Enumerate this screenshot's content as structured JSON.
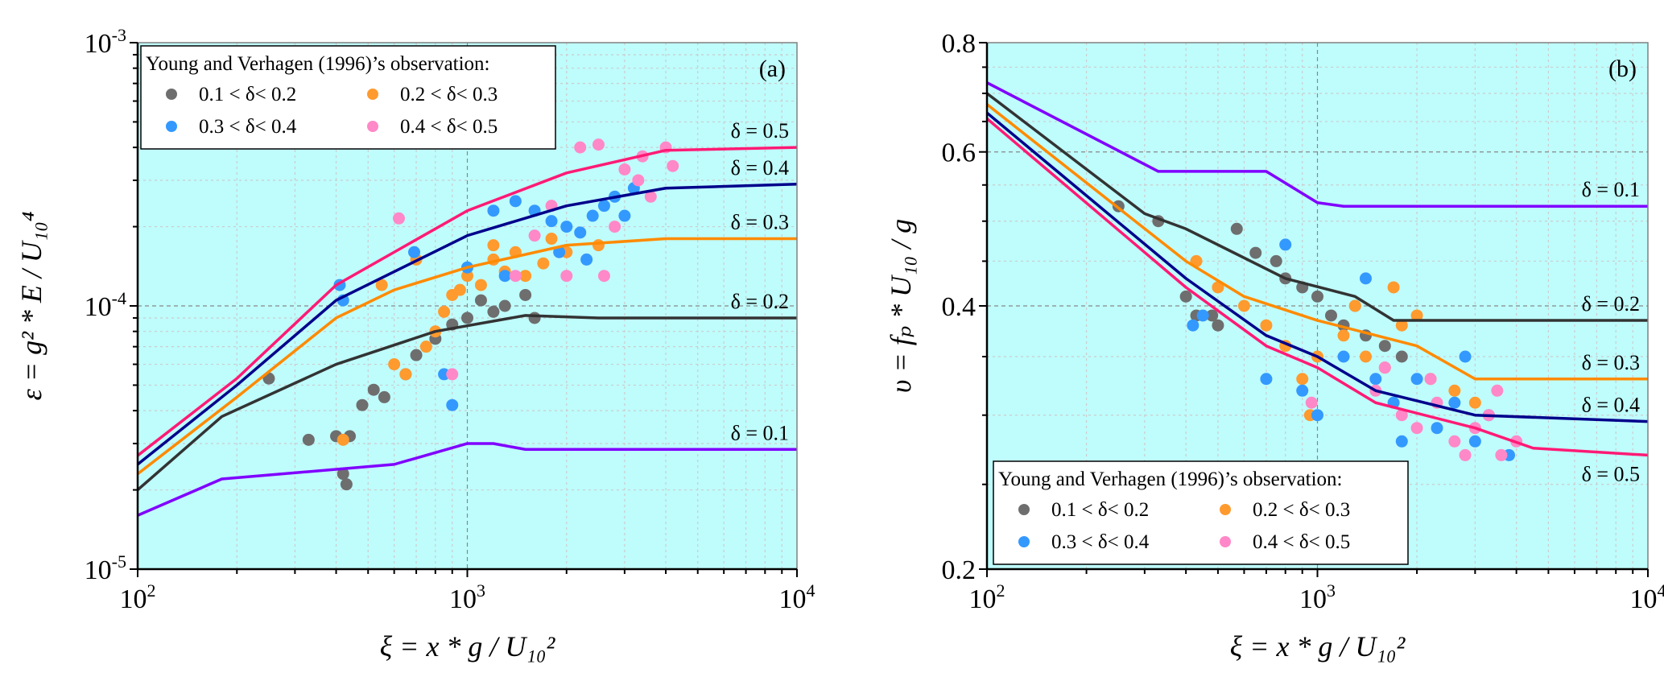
{
  "colors": {
    "background": "#bffcfc",
    "frame": "#808080",
    "lines": {
      "0.1": "#8000ff",
      "0.2": "#333333",
      "0.3": "#ff8a00",
      "0.4": "#00008b",
      "0.5": "#ff1a75"
    },
    "scatter": [
      "#6e6e6e",
      "#ff9a2e",
      "#3399ff",
      "#ff88c8"
    ]
  },
  "chart_data": [
    {
      "type": "line+scatter",
      "panel_label": "(a)",
      "xlabel": "ξ = x * g / U₁₀²",
      "ylabel": "ε = g² * E / U₁₀⁴",
      "xscale": "log",
      "yscale": "log",
      "xlim": [
        100,
        10000
      ],
      "ylim": [
        1e-05,
        0.001
      ],
      "grid": true,
      "xticks": [
        {
          "v": 100,
          "base": "10",
          "exp": "2"
        },
        {
          "v": 1000,
          "base": "10",
          "exp": "3"
        },
        {
          "v": 10000,
          "base": "10",
          "exp": "4"
        }
      ],
      "yticks": [
        {
          "v": 0.001,
          "base": "10",
          "exp": "-3"
        },
        {
          "v": 0.0001,
          "base": "10",
          "exp": "-4"
        },
        {
          "v": 1e-05,
          "base": "10",
          "exp": "-5"
        }
      ],
      "legend": {
        "placement": "top-left",
        "title": "Young and Verhagen (1996)’s observation:",
        "entries": [
          "0.1 < δ< 0.2",
          "0.2 < δ< 0.3",
          "0.3 < δ< 0.4",
          "0.4 < δ< 0.5"
        ]
      },
      "lines": [
        {
          "label": "δ = 0.1",
          "key": "0.1",
          "points": [
            [
              100,
              1.6e-05
            ],
            [
              180,
              2.2e-05
            ],
            [
              600,
              2.5e-05
            ],
            [
              1000,
              3e-05
            ],
            [
              1200,
              3e-05
            ],
            [
              1500,
              2.85e-05
            ],
            [
              10000,
              2.85e-05
            ]
          ]
        },
        {
          "label": "δ = 0.2",
          "key": "0.2",
          "points": [
            [
              100,
              2e-05
            ],
            [
              180,
              3.8e-05
            ],
            [
              400,
              6e-05
            ],
            [
              800,
              8e-05
            ],
            [
              1500,
              9.2e-05
            ],
            [
              2500,
              9e-05
            ],
            [
              10000,
              9e-05
            ]
          ]
        },
        {
          "label": "δ = 0.3",
          "key": "0.3",
          "points": [
            [
              100,
              2.3e-05
            ],
            [
              200,
              4.5e-05
            ],
            [
              400,
              9e-05
            ],
            [
              600,
              0.000115
            ],
            [
              1000,
              0.00014
            ],
            [
              2000,
              0.00017
            ],
            [
              4000,
              0.00018
            ],
            [
              10000,
              0.00018
            ]
          ]
        },
        {
          "label": "δ = 0.4",
          "key": "0.4",
          "points": [
            [
              100,
              2.5e-05
            ],
            [
              200,
              5e-05
            ],
            [
              400,
              0.000105
            ],
            [
              1000,
              0.000185
            ],
            [
              2000,
              0.00024
            ],
            [
              4000,
              0.00028
            ],
            [
              10000,
              0.00029
            ]
          ]
        },
        {
          "label": "δ = 0.5",
          "key": "0.5",
          "points": [
            [
              100,
              2.7e-05
            ],
            [
              200,
              5.3e-05
            ],
            [
              400,
              0.00012
            ],
            [
              1000,
              0.00023
            ],
            [
              2000,
              0.00032
            ],
            [
              4000,
              0.00039
            ],
            [
              10000,
              0.0004
            ]
          ]
        }
      ],
      "scatter": [
        {
          "name": "0.1 < δ< 0.2",
          "points": [
            [
              250,
              5.3e-05
            ],
            [
              330,
              3.1e-05
            ],
            [
              400,
              3.2e-05
            ],
            [
              420,
              2.3e-05
            ],
            [
              430,
              2.1e-05
            ],
            [
              440,
              3.2e-05
            ],
            [
              480,
              4.2e-05
            ],
            [
              520,
              4.8e-05
            ],
            [
              560,
              4.5e-05
            ],
            [
              650,
              5.5e-05
            ],
            [
              700,
              6.5e-05
            ],
            [
              800,
              7.5e-05
            ],
            [
              900,
              8.5e-05
            ],
            [
              1000,
              9e-05
            ],
            [
              1100,
              0.000105
            ],
            [
              1200,
              9.5e-05
            ],
            [
              1300,
              0.0001
            ],
            [
              1500,
              0.00011
            ],
            [
              1600,
              9e-05
            ]
          ]
        },
        {
          "name": "0.2 < δ< 0.3",
          "points": [
            [
              420,
              3.1e-05
            ],
            [
              550,
              0.00012
            ],
            [
              600,
              6e-05
            ],
            [
              650,
              5.5e-05
            ],
            [
              700,
              0.00015
            ],
            [
              750,
              7e-05
            ],
            [
              800,
              8e-05
            ],
            [
              850,
              9.5e-05
            ],
            [
              900,
              0.00011
            ],
            [
              950,
              0.000115
            ],
            [
              1000,
              0.00013
            ],
            [
              1100,
              0.00012
            ],
            [
              1200,
              0.00015
            ],
            [
              1200,
              0.00017
            ],
            [
              1300,
              0.000135
            ],
            [
              1400,
              0.00016
            ],
            [
              1500,
              0.00013
            ],
            [
              1700,
              0.000145
            ],
            [
              1800,
              0.00018
            ],
            [
              2000,
              0.00016
            ],
            [
              2500,
              0.00017
            ]
          ]
        },
        {
          "name": "0.3 < δ< 0.4",
          "points": [
            [
              410,
              0.00012
            ],
            [
              420,
              0.000105
            ],
            [
              690,
              0.00016
            ],
            [
              850,
              5.5e-05
            ],
            [
              900,
              4.2e-05
            ],
            [
              1000,
              0.00014
            ],
            [
              1200,
              0.00023
            ],
            [
              1300,
              0.00013
            ],
            [
              1400,
              0.00025
            ],
            [
              1600,
              0.00023
            ],
            [
              1800,
              0.00021
            ],
            [
              1900,
              0.00016
            ],
            [
              2000,
              0.0002
            ],
            [
              2200,
              0.00019
            ],
            [
              2300,
              0.00015
            ],
            [
              2400,
              0.00022
            ],
            [
              2600,
              0.00024
            ],
            [
              2800,
              0.00026
            ],
            [
              3000,
              0.00022
            ],
            [
              3200,
              0.00028
            ]
          ]
        },
        {
          "name": "0.4 < δ< 0.5",
          "points": [
            [
              620,
              0.000215
            ],
            [
              900,
              5.5e-05
            ],
            [
              1400,
              0.00013
            ],
            [
              1600,
              0.000185
            ],
            [
              1800,
              0.00024
            ],
            [
              2000,
              0.00013
            ],
            [
              2200,
              0.0004
            ],
            [
              2500,
              0.00041
            ],
            [
              2600,
              0.00013
            ],
            [
              2800,
              0.0002
            ],
            [
              3000,
              0.00033
            ],
            [
              3300,
              0.0003
            ],
            [
              3400,
              0.00037
            ],
            [
              3600,
              0.00026
            ],
            [
              4000,
              0.0004
            ],
            [
              4200,
              0.00034
            ]
          ]
        }
      ]
    },
    {
      "type": "line+scatter",
      "panel_label": "(b)",
      "xlabel": "ξ = x * g / U₁₀²",
      "ylabel": "υ = fₚ * U₁₀ / g",
      "xscale": "log",
      "yscale": "log",
      "xlim": [
        100,
        10000
      ],
      "ylim": [
        0.2,
        0.8
      ],
      "grid": true,
      "xticks": [
        {
          "v": 100,
          "base": "10",
          "exp": "2"
        },
        {
          "v": 1000,
          "base": "10",
          "exp": "3"
        },
        {
          "v": 10000,
          "base": "10",
          "exp": "4"
        }
      ],
      "yticks": [
        {
          "v": 0.2,
          "base": "0.2",
          "exp": ""
        },
        {
          "v": 0.4,
          "base": "0.4",
          "exp": ""
        },
        {
          "v": 0.6,
          "base": "0.6",
          "exp": ""
        },
        {
          "v": 0.8,
          "base": "0.8",
          "exp": ""
        }
      ],
      "legend": {
        "placement": "bottom-left",
        "title": "Young and Verhagen (1996)’s observation:",
        "entries": [
          "0.1 < δ< 0.2",
          "0.2 < δ< 0.3",
          "0.3 < δ< 0.4",
          "0.4 < δ< 0.5"
        ]
      },
      "lines": [
        {
          "label": "δ = 0.1",
          "key": "0.1",
          "points": [
            [
              100,
              0.72
            ],
            [
              330,
              0.57
            ],
            [
              700,
              0.57
            ],
            [
              1000,
              0.525
            ],
            [
              1200,
              0.52
            ],
            [
              10000,
              0.52
            ]
          ]
        },
        {
          "label": "δ = 0.2",
          "key": "0.2",
          "points": [
            [
              100,
              0.7
            ],
            [
              300,
              0.51
            ],
            [
              400,
              0.49
            ],
            [
              800,
              0.43
            ],
            [
              1300,
              0.41
            ],
            [
              1700,
              0.385
            ],
            [
              10000,
              0.385
            ]
          ]
        },
        {
          "label": "δ = 0.3",
          "key": "0.3",
          "points": [
            [
              100,
              0.68
            ],
            [
              400,
              0.45
            ],
            [
              600,
              0.41
            ],
            [
              1000,
              0.385
            ],
            [
              2000,
              0.36
            ],
            [
              3000,
              0.33
            ],
            [
              10000,
              0.33
            ]
          ]
        },
        {
          "label": "δ = 0.4",
          "key": "0.4",
          "points": [
            [
              100,
              0.665
            ],
            [
              400,
              0.43
            ],
            [
              700,
              0.37
            ],
            [
              1000,
              0.35
            ],
            [
              1500,
              0.32
            ],
            [
              3000,
              0.3
            ],
            [
              10000,
              0.295
            ]
          ]
        },
        {
          "label": "δ = 0.5",
          "key": "0.5",
          "points": [
            [
              100,
              0.655
            ],
            [
              400,
              0.42
            ],
            [
              700,
              0.36
            ],
            [
              1000,
              0.34
            ],
            [
              1500,
              0.31
            ],
            [
              3000,
              0.29
            ],
            [
              4500,
              0.275
            ],
            [
              10000,
              0.27
            ]
          ]
        }
      ],
      "scatter": [
        {
          "name": "0.1 < δ< 0.2",
          "points": [
            [
              250,
              0.52
            ],
            [
              330,
              0.5
            ],
            [
              400,
              0.41
            ],
            [
              430,
              0.39
            ],
            [
              480,
              0.39
            ],
            [
              500,
              0.38
            ],
            [
              570,
              0.49
            ],
            [
              650,
              0.46
            ],
            [
              750,
              0.45
            ],
            [
              800,
              0.43
            ],
            [
              900,
              0.42
            ],
            [
              1000,
              0.41
            ],
            [
              1100,
              0.39
            ],
            [
              1200,
              0.38
            ],
            [
              1300,
              0.4
            ],
            [
              1400,
              0.37
            ],
            [
              1600,
              0.36
            ],
            [
              1800,
              0.35
            ]
          ]
        },
        {
          "name": "0.2 < δ< 0.3",
          "points": [
            [
              430,
              0.45
            ],
            [
              500,
              0.42
            ],
            [
              600,
              0.4
            ],
            [
              700,
              0.38
            ],
            [
              800,
              0.36
            ],
            [
              900,
              0.33
            ],
            [
              950,
              0.3
            ],
            [
              1000,
              0.35
            ],
            [
              1200,
              0.37
            ],
            [
              1300,
              0.4
            ],
            [
              1400,
              0.35
            ],
            [
              1600,
              0.34
            ],
            [
              1700,
              0.42
            ],
            [
              1800,
              0.38
            ],
            [
              2000,
              0.39
            ],
            [
              2200,
              0.33
            ],
            [
              2600,
              0.32
            ],
            [
              3000,
              0.31
            ]
          ]
        },
        {
          "name": "0.3 < δ< 0.4",
          "points": [
            [
              420,
              0.38
            ],
            [
              450,
              0.39
            ],
            [
              700,
              0.33
            ],
            [
              800,
              0.47
            ],
            [
              900,
              0.32
            ],
            [
              1000,
              0.3
            ],
            [
              1200,
              0.35
            ],
            [
              1400,
              0.43
            ],
            [
              1500,
              0.33
            ],
            [
              1700,
              0.31
            ],
            [
              1800,
              0.28
            ],
            [
              2000,
              0.33
            ],
            [
              2300,
              0.29
            ],
            [
              2600,
              0.31
            ],
            [
              2800,
              0.35
            ],
            [
              3000,
              0.28
            ],
            [
              3300,
              0.3
            ],
            [
              3800,
              0.27
            ]
          ]
        },
        {
          "name": "0.4 < δ< 0.5",
          "points": [
            [
              960,
              0.31
            ],
            [
              1500,
              0.32
            ],
            [
              1600,
              0.34
            ],
            [
              1800,
              0.3
            ],
            [
              2000,
              0.29
            ],
            [
              2200,
              0.33
            ],
            [
              2300,
              0.31
            ],
            [
              2600,
              0.28
            ],
            [
              2800,
              0.27
            ],
            [
              3000,
              0.29
            ],
            [
              3300,
              0.3
            ],
            [
              3500,
              0.32
            ],
            [
              3600,
              0.27
            ],
            [
              4000,
              0.28
            ]
          ]
        }
      ]
    }
  ]
}
